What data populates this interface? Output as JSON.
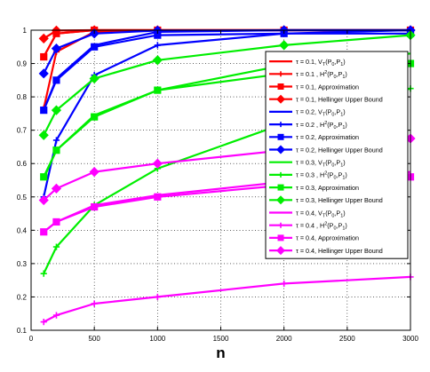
{
  "chart_data": {
    "type": "line",
    "title": "",
    "xlabel": "n",
    "ylabel": "",
    "xlim": [
      0,
      3000
    ],
    "ylim": [
      0.1,
      1.0
    ],
    "xticks": [
      0,
      500,
      1000,
      1500,
      2000,
      2500,
      3000
    ],
    "xtick_labels": [
      "0",
      "500",
      "1000",
      "1500",
      "2000",
      "2500",
      "3000"
    ],
    "yticks": [
      0.1,
      0.2,
      0.3,
      0.4,
      0.5,
      0.6,
      0.7,
      0.8,
      0.9,
      1.0
    ],
    "ytick_labels": [
      "0.1",
      "0.2",
      "0.3",
      "0.4",
      "0.5",
      "0.6",
      "0.7",
      "0.8",
      "0.9",
      "1"
    ],
    "grid": true,
    "legend_position": "right-center",
    "x": [
      100,
      200,
      500,
      1000,
      2000,
      3000
    ],
    "series": [
      {
        "name": "τ = 0.1, V_T(P_0,P_1)",
        "label_main": "τ = 0.1, V",
        "sub1": "T",
        "paren": "(P",
        "sub2": "0",
        "comma": ",P",
        "sub3": "1",
        "close": ")",
        "color": "#ff0000",
        "marker": "none",
        "values": [
          0.92,
          0.99,
          1.0,
          1.0,
          1.0,
          1.0
        ]
      },
      {
        "name": "τ = 0.1 , H²(P_0,P_1)",
        "label_main": "τ = 0.1 , H",
        "sup": "2",
        "paren": "(P",
        "sub2": "0",
        "comma": ",P",
        "sub3": "1",
        "close": ")",
        "color": "#ff0000",
        "marker": "plus",
        "values": [
          0.765,
          0.935,
          0.995,
          1.0,
          1.0,
          1.0
        ]
      },
      {
        "name": "τ = 0.1,  Approximation",
        "label_main": "τ = 0.1,  Approximation",
        "color": "#ff0000",
        "marker": "square",
        "values": [
          0.92,
          0.99,
          1.0,
          1.0,
          1.0,
          1.0
        ]
      },
      {
        "name": "τ = 0.1,  Hellinger Upper Bound",
        "label_main": "τ = 0.1,  Hellinger Upper Bound",
        "color": "#ff0000",
        "marker": "diamond",
        "values": [
          0.975,
          0.999,
          1.0,
          1.0,
          1.0,
          1.0
        ]
      },
      {
        "name": "τ = 0.2, V_T(P_0,P_1)",
        "label_main": "τ = 0.2, V",
        "sub1": "T",
        "paren": "(P",
        "sub2": "0",
        "comma": ",P",
        "sub3": "1",
        "close": ")",
        "color": "#0000ff",
        "marker": "none",
        "values": [
          0.76,
          0.855,
          0.955,
          0.995,
          1.0,
          1.0
        ]
      },
      {
        "name": "τ = 0.2 , H²(P_0,P_1)",
        "label_main": "τ = 0.2 , H",
        "sup": "2",
        "paren": "(P",
        "sub2": "0",
        "comma": ",P",
        "sub3": "1",
        "close": ")",
        "color": "#0000ff",
        "marker": "plus",
        "values": [
          0.5,
          0.67,
          0.865,
          0.955,
          0.99,
          1.0
        ]
      },
      {
        "name": "τ = 0.2,  Approximation",
        "label_main": "τ = 0.2,  Approximation",
        "color": "#0000ff",
        "marker": "square",
        "values": [
          0.76,
          0.85,
          0.95,
          0.985,
          0.99,
          0.99
        ]
      },
      {
        "name": "τ = 0.2,  Hellinger Upper Bound",
        "label_main": "τ = 0.2,  Hellinger Upper Bound",
        "color": "#0000ff",
        "marker": "diamond",
        "values": [
          0.87,
          0.945,
          0.99,
          0.999,
          1.0,
          1.0
        ]
      },
      {
        "name": "τ = 0.3, V_T(P_0,P_1)",
        "label_main": "τ = 0.3, V",
        "sub1": "T",
        "paren": "(P",
        "sub2": "0",
        "comma": ",P",
        "sub3": "1",
        "close": ")",
        "color": "#00ee00",
        "marker": "none",
        "values": [
          0.555,
          0.64,
          0.745,
          0.82,
          0.895,
          0.93
        ]
      },
      {
        "name": "τ = 0.3 , H²(P_0,P_1)",
        "label_main": "τ = 0.3 , H",
        "sup": "2",
        "paren": "(P",
        "sub2": "0",
        "comma": ",P",
        "sub3": "1",
        "close": ")",
        "color": "#00ee00",
        "marker": "plus",
        "values": [
          0.27,
          0.35,
          0.475,
          0.585,
          0.72,
          0.825
        ]
      },
      {
        "name": "τ = 0.3,  Approximation",
        "label_main": "τ = 0.3,  Approximation",
        "color": "#00ee00",
        "marker": "square",
        "values": [
          0.56,
          0.64,
          0.74,
          0.82,
          0.87,
          0.9
        ]
      },
      {
        "name": "τ = 0.3,  Hellinger Upper Bound",
        "label_main": "τ = 0.3,  Hellinger Upper Bound",
        "color": "#00ee00",
        "marker": "diamond",
        "values": [
          0.685,
          0.76,
          0.855,
          0.91,
          0.955,
          0.985
        ]
      },
      {
        "name": "τ = 0.4, V_T(P_0,P_1)",
        "label_main": "τ = 0.4, V",
        "sub1": "T",
        "paren": "(P",
        "sub2": "0",
        "comma": ",P",
        "sub3": "1",
        "close": ")",
        "color": "#ff00ff",
        "marker": "none",
        "values": [
          0.395,
          0.425,
          0.475,
          0.505,
          0.545,
          0.575
        ]
      },
      {
        "name": "τ = 0.4 , H²(P_0,P_1)",
        "label_main": "τ = 0.4 , H",
        "sup": "2",
        "paren": "(P",
        "sub2": "0",
        "comma": ",P",
        "sub3": "1",
        "close": ")",
        "color": "#ff00ff",
        "marker": "plus",
        "values": [
          0.125,
          0.145,
          0.18,
          0.2,
          0.24,
          0.26
        ]
      },
      {
        "name": "τ = 0.4,  Approximation",
        "label_main": "τ = 0.4,  Approximation",
        "color": "#ff00ff",
        "marker": "square",
        "values": [
          0.395,
          0.425,
          0.47,
          0.5,
          0.535,
          0.56
        ]
      },
      {
        "name": "τ = 0.4,  Hellinger Upper Bound",
        "label_main": "τ = 0.4,  Hellinger Upper Bound",
        "color": "#ff00ff",
        "marker": "diamond",
        "values": [
          0.49,
          0.525,
          0.575,
          0.6,
          0.64,
          0.675
        ]
      }
    ]
  }
}
